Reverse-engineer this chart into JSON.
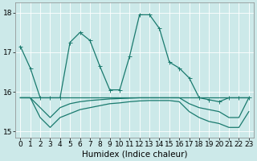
{
  "xlabel": "Humidex (Indice chaleur)",
  "xlim": [
    -0.5,
    23.5
  ],
  "ylim": [
    14.85,
    18.25
  ],
  "yticks": [
    15,
    16,
    17,
    18
  ],
  "xticks": [
    0,
    1,
    2,
    3,
    4,
    5,
    6,
    7,
    8,
    9,
    10,
    11,
    12,
    13,
    14,
    15,
    16,
    17,
    18,
    19,
    20,
    21,
    22,
    23
  ],
  "background_color": "#cce9e9",
  "grid_color": "#b0d8d8",
  "line_color": "#1a7a6e",
  "series": [
    [
      17.15,
      16.6,
      15.85,
      15.85,
      15.85,
      17.25,
      17.5,
      17.3,
      16.65,
      16.05,
      16.05,
      16.9,
      17.95,
      17.95,
      17.6,
      16.75,
      16.6,
      16.35,
      15.85,
      15.8,
      15.75,
      15.85,
      15.85,
      15.85
    ],
    [
      15.85,
      15.85,
      15.85,
      15.85,
      15.85,
      15.85,
      15.85,
      15.85,
      15.85,
      15.85,
      15.85,
      15.85,
      15.85,
      15.85,
      15.85,
      15.85,
      15.85,
      15.85,
      15.85,
      15.85,
      15.85,
      15.85,
      15.85,
      15.85
    ],
    [
      15.85,
      15.85,
      15.6,
      15.35,
      15.6,
      15.7,
      15.75,
      15.78,
      15.8,
      15.82,
      15.83,
      15.84,
      15.85,
      15.85,
      15.85,
      15.85,
      15.85,
      15.7,
      15.6,
      15.55,
      15.5,
      15.35,
      15.35,
      15.85
    ],
    [
      15.85,
      15.85,
      15.35,
      15.1,
      15.35,
      15.45,
      15.55,
      15.6,
      15.65,
      15.7,
      15.72,
      15.75,
      15.77,
      15.78,
      15.78,
      15.78,
      15.75,
      15.5,
      15.35,
      15.25,
      15.2,
      15.1,
      15.1,
      15.5
    ]
  ],
  "marker_size": 2.0,
  "line_width": 0.9,
  "fontsize_ticks": 6.5,
  "fontsize_label": 7.5
}
